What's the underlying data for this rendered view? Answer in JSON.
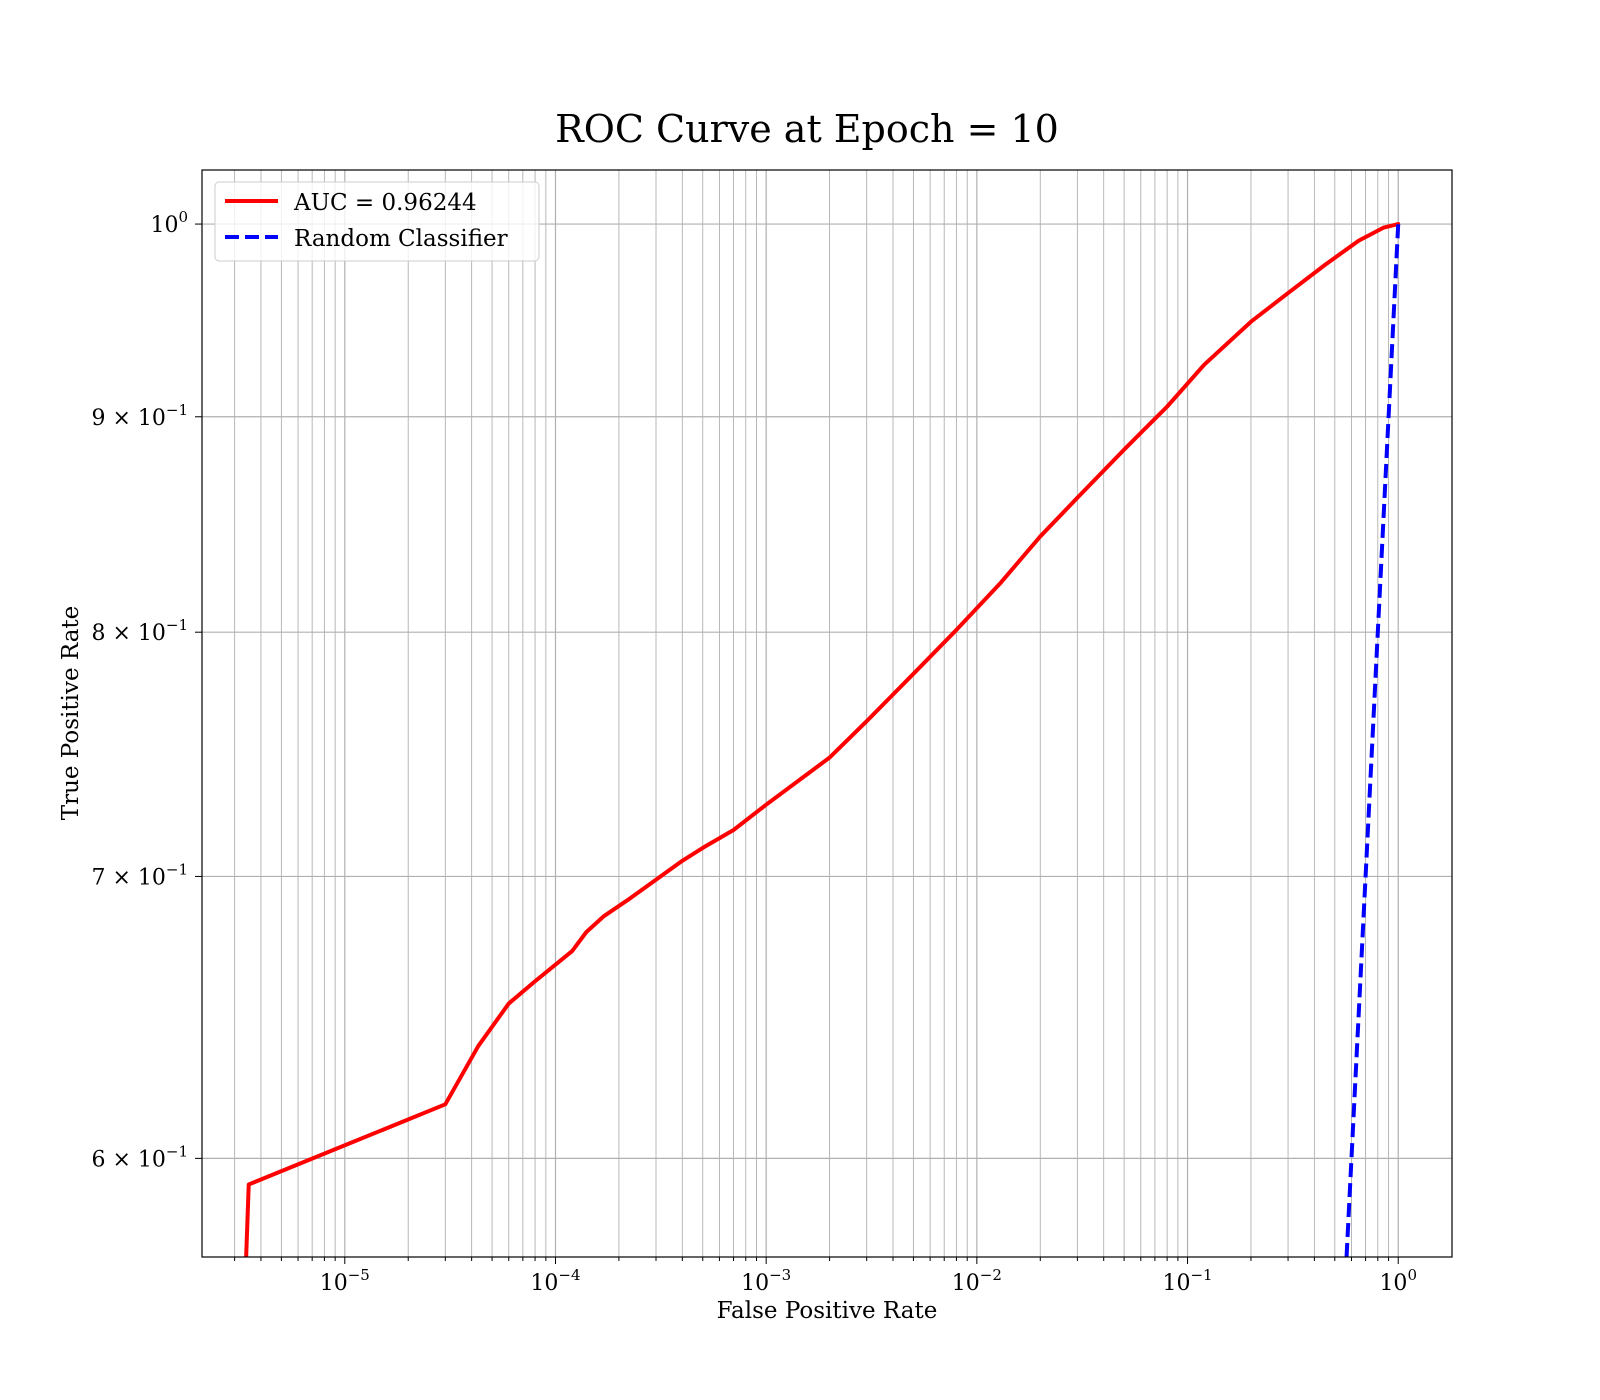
{
  "chart_data": {
    "type": "line",
    "title": "ROC Curve at Epoch = 10",
    "xlabel": "False Positive Rate",
    "ylabel": "True Positive Rate",
    "xscale": "log",
    "yscale": "log",
    "xlim": [
      2.1e-06,
      1.8
    ],
    "ylim": [
      0.5685,
      1.03
    ],
    "grid": true,
    "grid_which": "both",
    "legend_placement": "upper-left",
    "x_ticks": [
      {
        "value": 1e-05,
        "base": "10",
        "exp": "−5"
      },
      {
        "value": 0.0001,
        "base": "10",
        "exp": "−4"
      },
      {
        "value": 0.001,
        "base": "10",
        "exp": "−3"
      },
      {
        "value": 0.01,
        "base": "10",
        "exp": "−2"
      },
      {
        "value": 0.1,
        "base": "10",
        "exp": "−1"
      },
      {
        "value": 1,
        "base": "10",
        "exp": "0"
      }
    ],
    "y_ticks": [
      {
        "value": 1.0,
        "base": "10",
        "exp": "0"
      },
      {
        "value": 0.9,
        "base": "9 × 10",
        "exp": "−1"
      },
      {
        "value": 0.8,
        "base": "8 × 10",
        "exp": "−1"
      },
      {
        "value": 0.7,
        "base": "7 × 10",
        "exp": "−1"
      },
      {
        "value": 0.6,
        "base": "6 × 10",
        "exp": "−1"
      }
    ],
    "series": [
      {
        "name": "AUC = 0.96244",
        "color": "#ff0000",
        "style": "solid",
        "x": [
          3.4e-06,
          3.5e-06,
          3e-05,
          4.3e-05,
          6e-05,
          8e-05,
          0.00012,
          0.00014,
          0.00017,
          0.00022,
          0.00028,
          0.0004,
          0.0005,
          0.0007,
          0.001,
          0.002,
          0.003,
          0.005,
          0.008,
          0.013,
          0.02,
          0.03,
          0.05,
          0.08,
          0.12,
          0.2,
          0.3,
          0.45,
          0.65,
          0.85,
          1.0
        ],
        "y": [
          0.568,
          0.5915,
          0.618,
          0.638,
          0.653,
          0.661,
          0.672,
          0.679,
          0.685,
          0.691,
          0.697,
          0.706,
          0.711,
          0.718,
          0.728,
          0.747,
          0.762,
          0.782,
          0.801,
          0.822,
          0.843,
          0.861,
          0.884,
          0.905,
          0.926,
          0.948,
          0.963,
          0.978,
          0.991,
          0.998,
          1.0
        ]
      },
      {
        "name": "Random Classifier",
        "color": "#0000ff",
        "style": "dashed",
        "x": [
          0.5685,
          1.0
        ],
        "y": [
          0.5685,
          1.0
        ]
      }
    ]
  }
}
